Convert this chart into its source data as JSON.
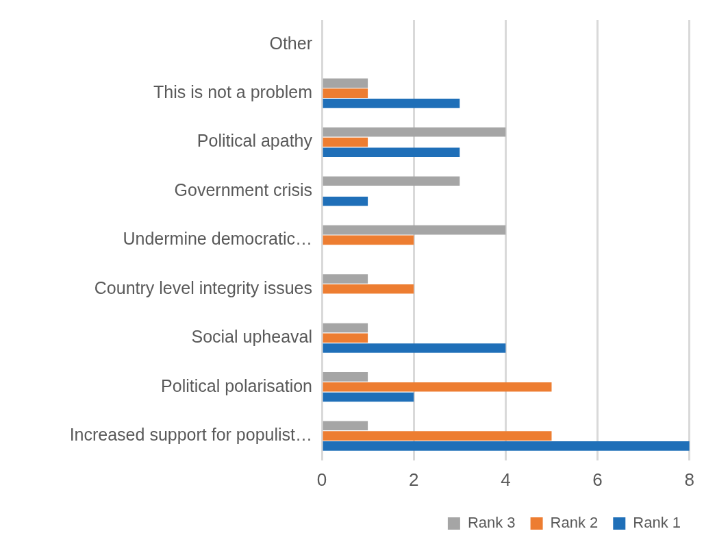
{
  "chart_data": {
    "type": "bar",
    "orientation": "horizontal",
    "categories": [
      "Other",
      "This is not a problem",
      "Political apathy",
      "Government crisis",
      "Undermine democratic…",
      "Country level integrity issues",
      "Social upheaval",
      "Political polarisation",
      "Increased support for populist…"
    ],
    "series": [
      {
        "name": "Rank 3",
        "color": "#a5a5a5",
        "values": [
          0,
          1,
          4,
          3,
          4,
          1,
          1,
          1,
          1
        ]
      },
      {
        "name": "Rank 2",
        "color": "#ed7d31",
        "values": [
          0,
          1,
          1,
          0,
          2,
          2,
          1,
          5,
          5
        ]
      },
      {
        "name": "Rank 1",
        "color": "#1f6fb8",
        "values": [
          0,
          3,
          3,
          1,
          0,
          0,
          4,
          2,
          8
        ]
      }
    ],
    "xlim": [
      0,
      8
    ],
    "xticks": [
      0,
      2,
      4,
      6,
      8
    ],
    "grid": "x",
    "legend": "bottom right"
  }
}
